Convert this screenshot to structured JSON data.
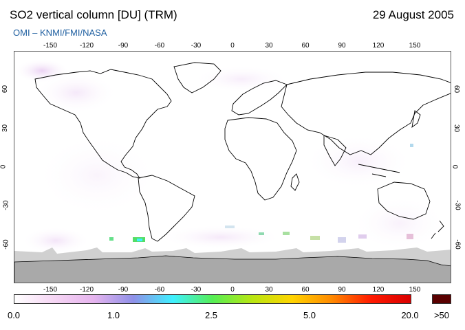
{
  "header": {
    "title": "SO2 vertical column [DU] (TRM)",
    "date": "29 August 2005",
    "subtitle": "OMI  –  KNMI/FMI/NASA",
    "subtitle_color": "#1f5fa0"
  },
  "map": {
    "lon_ticks": [
      "-150",
      "-120",
      "-90",
      "-60",
      "-30",
      "0",
      "30",
      "60",
      "90",
      "120",
      "150"
    ],
    "lat_ticks": [
      "60",
      "30",
      "0",
      "-30",
      "-60"
    ],
    "lon_range": [
      -180,
      180
    ],
    "lat_range": [
      -90,
      90
    ],
    "ocean_color": "#ffffff",
    "no_data_color": "#a9a9a9",
    "coastline_color": "#000000"
  },
  "colorbar": {
    "labels": [
      "0.0",
      "1.0",
      "2.5",
      "5.0",
      "20.0",
      ">50"
    ],
    "gradient_colors": [
      "#ffffff",
      "#f6d6f4",
      "#e6b4ee",
      "#8f90e8",
      "#3ff0ff",
      "#55ee55",
      "#b8e612",
      "#ffd400",
      "#ff8a00",
      "#ff1a00",
      "#d90000"
    ],
    "over_color": "#5a0000"
  }
}
